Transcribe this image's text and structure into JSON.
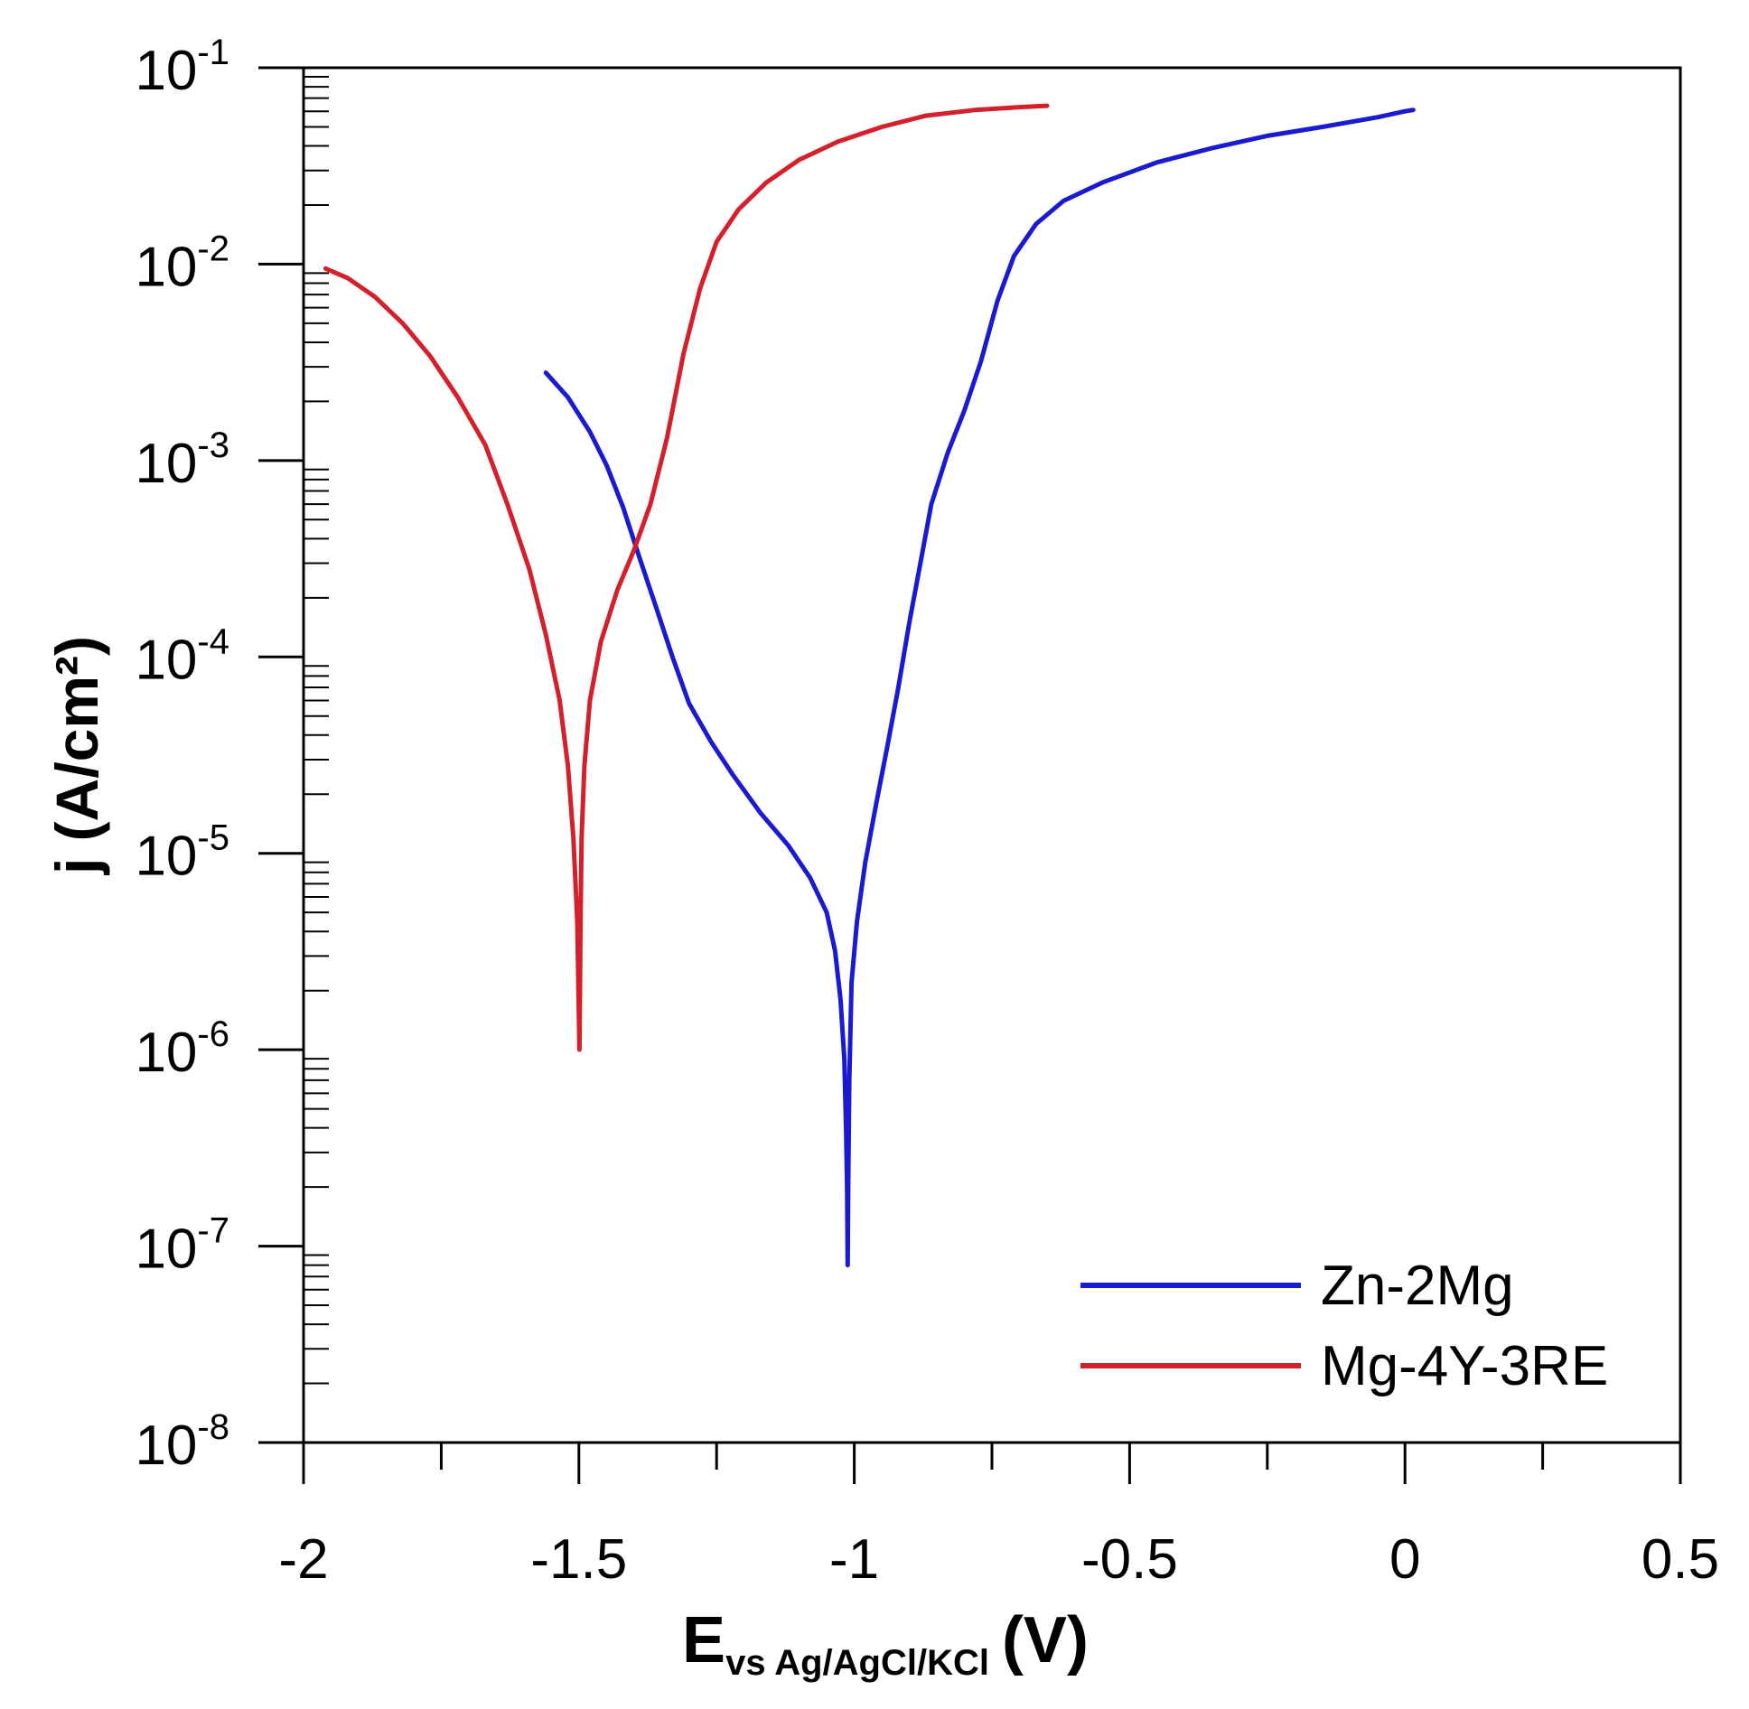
{
  "chart_data": {
    "type": "line",
    "xlabel": {
      "main": "E",
      "subscript": "vs Ag/AgCl/KCl",
      "unit": "(V)"
    },
    "ylabel": "j (A/cm²)",
    "xlim": [
      -2.0,
      0.5
    ],
    "x_ticks": [
      -2,
      -1.5,
      -1,
      -0.5,
      0,
      0.5
    ],
    "x_tick_labels": [
      "-2",
      "-1.5",
      "-1",
      "-0.5",
      "0",
      "0.5"
    ],
    "yscale": "log",
    "ylim": [
      1e-08,
      0.1
    ],
    "y_tick_exponents": [
      -1,
      -2,
      -3,
      -4,
      -5,
      -6,
      -7,
      -8
    ],
    "y_tick_base": "10",
    "grid": false,
    "legend_position": "bottom-right",
    "series": [
      {
        "name": "Zn-2Mg",
        "color": "#1a1ad0",
        "points": [
          [
            -1.56,
            0.0028
          ],
          [
            -1.52,
            0.0021
          ],
          [
            -1.48,
            0.0014
          ],
          [
            -1.45,
            0.00095
          ],
          [
            -1.42,
            0.00058
          ],
          [
            -1.39,
            0.00032
          ],
          [
            -1.36,
            0.00018
          ],
          [
            -1.33,
            0.0001
          ],
          [
            -1.3,
            5.8e-05
          ],
          [
            -1.26,
            3.7e-05
          ],
          [
            -1.22,
            2.5e-05
          ],
          [
            -1.17,
            1.6e-05
          ],
          [
            -1.12,
            1.1e-05
          ],
          [
            -1.08,
            7.5e-06
          ],
          [
            -1.05,
            5e-06
          ],
          [
            -1.035,
            3.2e-06
          ],
          [
            -1.025,
            1.8e-06
          ],
          [
            -1.018,
            9e-07
          ],
          [
            -1.015,
            4e-07
          ],
          [
            -1.013,
            2e-07
          ],
          [
            -1.012,
            8e-08
          ],
          [
            -1.011,
            2e-07
          ],
          [
            -1.009,
            7e-07
          ],
          [
            -1.005,
            2.2e-06
          ],
          [
            -0.995,
            4.5e-06
          ],
          [
            -0.98,
            9e-06
          ],
          [
            -0.96,
            1.8e-05
          ],
          [
            -0.94,
            3.5e-05
          ],
          [
            -0.92,
            7e-05
          ],
          [
            -0.9,
            0.00015
          ],
          [
            -0.88,
            0.0003
          ],
          [
            -0.86,
            0.0006
          ],
          [
            -0.83,
            0.0011
          ],
          [
            -0.8,
            0.0018
          ],
          [
            -0.77,
            0.0032
          ],
          [
            -0.74,
            0.0065
          ],
          [
            -0.71,
            0.011
          ],
          [
            -0.67,
            0.016
          ],
          [
            -0.62,
            0.021
          ],
          [
            -0.55,
            0.026
          ],
          [
            -0.45,
            0.033
          ],
          [
            -0.35,
            0.039
          ],
          [
            -0.25,
            0.045
          ],
          [
            -0.15,
            0.05
          ],
          [
            -0.05,
            0.056
          ],
          [
            0.0,
            0.06
          ],
          [
            0.015,
            0.061
          ]
        ]
      },
      {
        "name": "Mg-4Y-3RE",
        "color": "#d4202a",
        "points": [
          [
            -1.96,
            0.0095
          ],
          [
            -1.92,
            0.0085
          ],
          [
            -1.87,
            0.0068
          ],
          [
            -1.82,
            0.005
          ],
          [
            -1.77,
            0.0034
          ],
          [
            -1.72,
            0.0021
          ],
          [
            -1.67,
            0.0012
          ],
          [
            -1.63,
            0.0006
          ],
          [
            -1.59,
            0.00028
          ],
          [
            -1.56,
            0.00013
          ],
          [
            -1.535,
            6e-05
          ],
          [
            -1.52,
            2.8e-05
          ],
          [
            -1.51,
            1.2e-05
          ],
          [
            -1.503,
            4.5e-06
          ],
          [
            -1.499,
            1e-06
          ],
          [
            -1.497,
            4.5e-06
          ],
          [
            -1.495,
            1.2e-05
          ],
          [
            -1.49,
            2.8e-05
          ],
          [
            -1.48,
            6e-05
          ],
          [
            -1.46,
            0.00012
          ],
          [
            -1.43,
            0.00022
          ],
          [
            -1.4,
            0.00035
          ],
          [
            -1.37,
            0.0006
          ],
          [
            -1.34,
            0.0013
          ],
          [
            -1.31,
            0.0035
          ],
          [
            -1.28,
            0.0075
          ],
          [
            -1.25,
            0.013
          ],
          [
            -1.21,
            0.019
          ],
          [
            -1.16,
            0.026
          ],
          [
            -1.1,
            0.034
          ],
          [
            -1.03,
            0.042
          ],
          [
            -0.95,
            0.05
          ],
          [
            -0.87,
            0.057
          ],
          [
            -0.78,
            0.061
          ],
          [
            -0.7,
            0.063
          ],
          [
            -0.65,
            0.064
          ]
        ]
      }
    ]
  }
}
